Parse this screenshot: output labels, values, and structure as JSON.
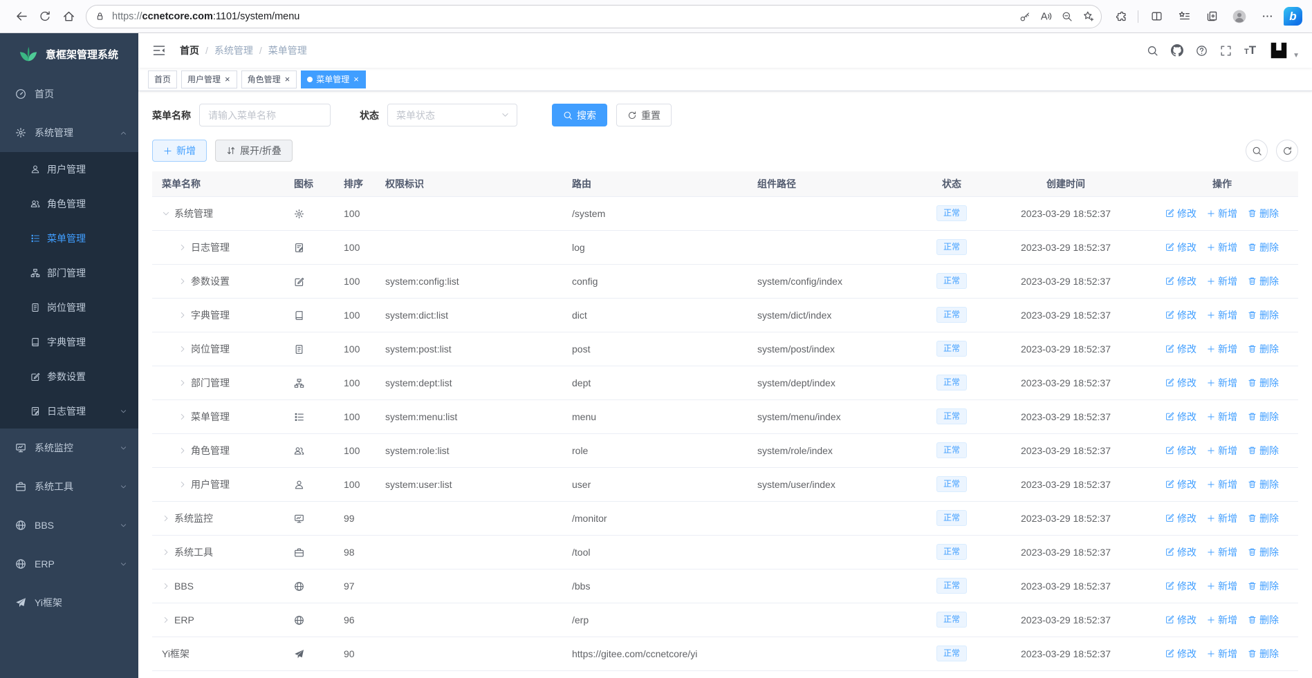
{
  "browser": {
    "url_scheme": "https://",
    "url_domain": "ccnetcore.com",
    "url_rest": ":1101/system/menu"
  },
  "sidebar": {
    "logo_text": "意框架管理系统",
    "items": [
      {
        "key": "home",
        "label": "首页",
        "icon": "dashboard",
        "level": "root",
        "arrow": "none",
        "active": false
      },
      {
        "key": "system-mgmt",
        "label": "系统管理",
        "icon": "gear",
        "level": "root",
        "arrow": "up",
        "active": false
      },
      {
        "key": "user-mgmt",
        "label": "用户管理",
        "icon": "user",
        "level": "sub",
        "arrow": "none",
        "active": false
      },
      {
        "key": "role-mgmt",
        "label": "角色管理",
        "icon": "users",
        "level": "sub",
        "arrow": "none",
        "active": false
      },
      {
        "key": "menu-mgmt",
        "label": "菜单管理",
        "icon": "menu",
        "level": "sub",
        "arrow": "none",
        "active": true
      },
      {
        "key": "dept-mgmt",
        "label": "部门管理",
        "icon": "dept",
        "level": "sub",
        "arrow": "none",
        "active": false
      },
      {
        "key": "post-mgmt",
        "label": "岗位管理",
        "icon": "post",
        "level": "sub",
        "arrow": "none",
        "active": false
      },
      {
        "key": "dict-mgmt",
        "label": "字典管理",
        "icon": "dict",
        "level": "sub",
        "arrow": "none",
        "active": false
      },
      {
        "key": "param-settings",
        "label": "参数设置",
        "icon": "edit",
        "level": "sub",
        "arrow": "none",
        "active": false
      },
      {
        "key": "log-mgmt",
        "label": "日志管理",
        "icon": "log",
        "level": "sub",
        "arrow": "down",
        "active": false
      },
      {
        "key": "system-monitor",
        "label": "系统监控",
        "icon": "monitor",
        "level": "root",
        "arrow": "down",
        "active": false
      },
      {
        "key": "system-tools",
        "label": "系统工具",
        "icon": "tool",
        "level": "root",
        "arrow": "down",
        "active": false
      },
      {
        "key": "bbs",
        "label": "BBS",
        "icon": "globe",
        "level": "root",
        "arrow": "down",
        "active": false
      },
      {
        "key": "erp",
        "label": "ERP",
        "icon": "globe",
        "level": "root",
        "arrow": "down",
        "active": false
      },
      {
        "key": "yi-framework",
        "label": "Yi框架",
        "icon": "plane",
        "level": "root",
        "arrow": "none",
        "active": false
      }
    ]
  },
  "navbar": {
    "breadcrumb": [
      "首页",
      "系统管理",
      "菜单管理"
    ]
  },
  "tags": [
    {
      "label": "首页",
      "active": false,
      "closable": false
    },
    {
      "label": "用户管理",
      "active": false,
      "closable": true
    },
    {
      "label": "角色管理",
      "active": false,
      "closable": true
    },
    {
      "label": "菜单管理",
      "active": true,
      "closable": true
    }
  ],
  "search": {
    "name_label": "菜单名称",
    "name_placeholder": "请输入菜单名称",
    "status_label": "状态",
    "status_placeholder": "菜单状态",
    "search_button": "搜索",
    "reset_button": "重置"
  },
  "toolbar": {
    "add_button": "新增",
    "toggle_button": "展开/折叠"
  },
  "table": {
    "headers": [
      "菜单名称",
      "图标",
      "排序",
      "权限标识",
      "路由",
      "组件路径",
      "状态",
      "创建时间",
      "操作"
    ],
    "actions": {
      "edit": "修改",
      "add": "新增",
      "delete": "删除"
    },
    "rows": [
      {
        "name": "系统管理",
        "icon": "gear",
        "tree": "expanded",
        "indent": 0,
        "sort": "100",
        "perms": "",
        "route": "/system",
        "component": "",
        "status": "正常",
        "created": "2023-03-29 18:52:37"
      },
      {
        "name": "日志管理",
        "icon": "log",
        "tree": "collapsed",
        "indent": 1,
        "sort": "100",
        "perms": "",
        "route": "log",
        "component": "",
        "status": "正常",
        "created": "2023-03-29 18:52:37"
      },
      {
        "name": "参数设置",
        "icon": "edit",
        "tree": "collapsed",
        "indent": 1,
        "sort": "100",
        "perms": "system:config:list",
        "route": "config",
        "component": "system/config/index",
        "status": "正常",
        "created": "2023-03-29 18:52:37"
      },
      {
        "name": "字典管理",
        "icon": "dict",
        "tree": "collapsed",
        "indent": 1,
        "sort": "100",
        "perms": "system:dict:list",
        "route": "dict",
        "component": "system/dict/index",
        "status": "正常",
        "created": "2023-03-29 18:52:37"
      },
      {
        "name": "岗位管理",
        "icon": "post",
        "tree": "collapsed",
        "indent": 1,
        "sort": "100",
        "perms": "system:post:list",
        "route": "post",
        "component": "system/post/index",
        "status": "正常",
        "created": "2023-03-29 18:52:37"
      },
      {
        "name": "部门管理",
        "icon": "dept",
        "tree": "collapsed",
        "indent": 1,
        "sort": "100",
        "perms": "system:dept:list",
        "route": "dept",
        "component": "system/dept/index",
        "status": "正常",
        "created": "2023-03-29 18:52:37"
      },
      {
        "name": "菜单管理",
        "icon": "menu",
        "tree": "collapsed",
        "indent": 1,
        "sort": "100",
        "perms": "system:menu:list",
        "route": "menu",
        "component": "system/menu/index",
        "status": "正常",
        "created": "2023-03-29 18:52:37"
      },
      {
        "name": "角色管理",
        "icon": "users",
        "tree": "collapsed",
        "indent": 1,
        "sort": "100",
        "perms": "system:role:list",
        "route": "role",
        "component": "system/role/index",
        "status": "正常",
        "created": "2023-03-29 18:52:37"
      },
      {
        "name": "用户管理",
        "icon": "user",
        "tree": "collapsed",
        "indent": 1,
        "sort": "100",
        "perms": "system:user:list",
        "route": "user",
        "component": "system/user/index",
        "status": "正常",
        "created": "2023-03-29 18:52:37"
      },
      {
        "name": "系统监控",
        "icon": "monitor",
        "tree": "collapsed",
        "indent": 0,
        "sort": "99",
        "perms": "",
        "route": "/monitor",
        "component": "",
        "status": "正常",
        "created": "2023-03-29 18:52:37"
      },
      {
        "name": "系统工具",
        "icon": "tool",
        "tree": "collapsed",
        "indent": 0,
        "sort": "98",
        "perms": "",
        "route": "/tool",
        "component": "",
        "status": "正常",
        "created": "2023-03-29 18:52:37"
      },
      {
        "name": "BBS",
        "icon": "globe",
        "tree": "collapsed",
        "indent": 0,
        "sort": "97",
        "perms": "",
        "route": "/bbs",
        "component": "",
        "status": "正常",
        "created": "2023-03-29 18:52:37"
      },
      {
        "name": "ERP",
        "icon": "globe",
        "tree": "collapsed",
        "indent": 0,
        "sort": "96",
        "perms": "",
        "route": "/erp",
        "component": "",
        "status": "正常",
        "created": "2023-03-29 18:52:37"
      },
      {
        "name": "Yi框架",
        "icon": "plane",
        "tree": "none",
        "indent": 0,
        "sort": "90",
        "perms": "",
        "route": "https://gitee.com/ccnetcore/yi",
        "component": "",
        "status": "正常",
        "created": "2023-03-29 18:52:37"
      }
    ]
  },
  "colors": {
    "primary": "#409eff",
    "sidebar_bg": "#304156",
    "sidebar_sub_bg": "#1f2d3d",
    "status_tag_bg": "#ecf5ff",
    "status_tag_text": "#409eff",
    "logo_green": "#3bb884"
  }
}
